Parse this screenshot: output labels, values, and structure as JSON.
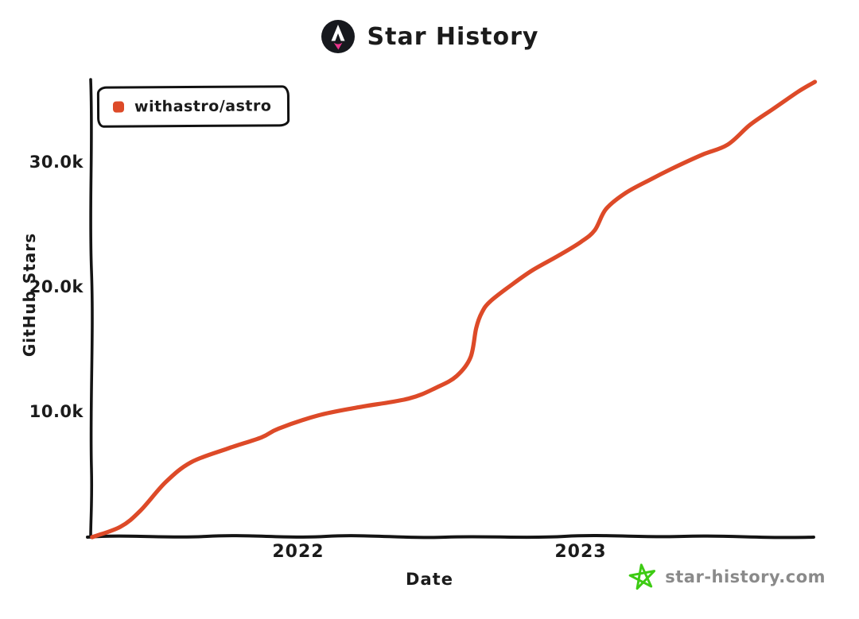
{
  "title": {
    "text": "Star History",
    "logo_icon": "astro-logo"
  },
  "legend": {
    "label": "withastro/astro",
    "marker_color": "#DD4A28"
  },
  "axes": {
    "y_label": "GitHub Stars",
    "x_label": "Date",
    "y_ticks": [
      {
        "label": "10.0k",
        "value": 10000
      },
      {
        "label": "20.0k",
        "value": 20000
      },
      {
        "label": "30.0k",
        "value": 30000
      }
    ],
    "x_ticks": [
      {
        "label": "2022",
        "value": 2022
      },
      {
        "label": "2023",
        "value": 2023
      }
    ]
  },
  "footer": {
    "site": "star-history.com",
    "star_icon": "star-doodle",
    "star_color": "#3DCB13",
    "text_color": "#8A8A8A"
  },
  "colors": {
    "line": "#DD4A28",
    "axis": "#141414",
    "text": "#1B1B1B"
  },
  "chart_data": {
    "type": "line",
    "title": "Star History",
    "xlabel": "Date",
    "ylabel": "GitHub Stars",
    "x_unit": "decimal_year",
    "xlim": [
      2021.25,
      2023.85
    ],
    "ylim": [
      0,
      37000
    ],
    "grid": false,
    "legend_position": "top-left",
    "series": [
      {
        "name": "withastro/astro",
        "color": "#DD4A28",
        "x": [
          2021.27,
          2021.37,
          2021.44,
          2021.53,
          2021.62,
          2021.75,
          2021.87,
          2021.93,
          2022.07,
          2022.21,
          2022.39,
          2022.49,
          2022.56,
          2022.61,
          2022.63,
          2022.65,
          2022.68,
          2022.76,
          2022.83,
          2022.92,
          2023.0,
          2023.05,
          2023.09,
          2023.16,
          2023.25,
          2023.32,
          2023.43,
          2023.52,
          2023.6,
          2023.68,
          2023.77,
          2023.83
        ],
        "y": [
          0,
          830,
          2100,
          4400,
          6000,
          7100,
          8000,
          8700,
          9750,
          10400,
          11100,
          12000,
          12900,
          14400,
          16750,
          18000,
          18900,
          20300,
          21400,
          22550,
          23650,
          24600,
          26300,
          27600,
          28700,
          29500,
          30650,
          31450,
          33050,
          34300,
          35700,
          36500
        ]
      }
    ]
  }
}
